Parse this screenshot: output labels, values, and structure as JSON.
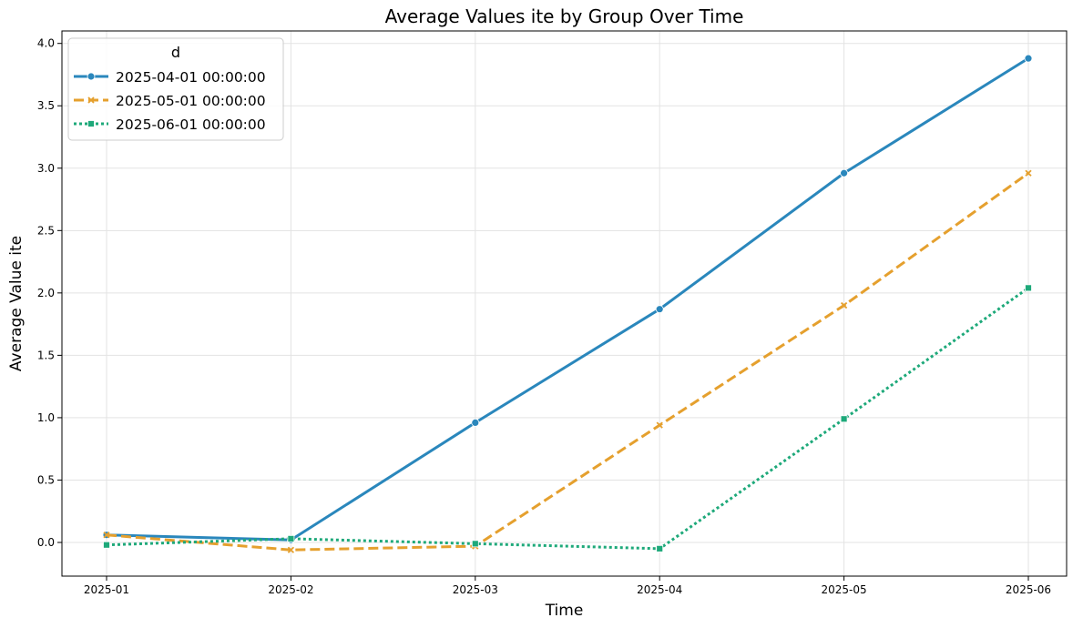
{
  "chart_data": {
    "type": "line",
    "title": "Average Values ite by Group Over Time",
    "xlabel": "Time",
    "ylabel": "Average Value ite",
    "categories": [
      "2025-01",
      "2025-02",
      "2025-03",
      "2025-04",
      "2025-05",
      "2025-06"
    ],
    "x": [
      "2025-01-01",
      "2025-02-01",
      "2025-03-01",
      "2025-04-01",
      "2025-05-01",
      "2025-06-01"
    ],
    "ylim": [
      -0.27,
      4.1
    ],
    "yticks": [
      0.0,
      0.5,
      1.0,
      1.5,
      2.0,
      2.5,
      3.0,
      3.5,
      4.0
    ],
    "ytick_labels": [
      "0.0",
      "0.5",
      "1.0",
      "1.5",
      "2.0",
      "2.5",
      "3.0",
      "3.5",
      "4.0"
    ],
    "grid": true,
    "legend": {
      "title": "d",
      "placement": "top-left"
    },
    "series": [
      {
        "name": "2025-04-01 00:00:00",
        "values": [
          0.06,
          0.02,
          0.96,
          1.87,
          2.96,
          3.88
        ],
        "color": "#2a87bc",
        "line_style": "solid",
        "marker": "circle"
      },
      {
        "name": "2025-05-01 00:00:00",
        "values": [
          0.06,
          -0.06,
          -0.03,
          0.94,
          1.9,
          2.96
        ],
        "color": "#e5a02e",
        "line_style": "dashed",
        "marker": "x"
      },
      {
        "name": "2025-06-01 00:00:00",
        "values": [
          -0.02,
          0.03,
          -0.01,
          -0.05,
          0.99,
          2.04
        ],
        "color": "#1ea97a",
        "line_style": "dotted",
        "marker": "square"
      }
    ]
  }
}
